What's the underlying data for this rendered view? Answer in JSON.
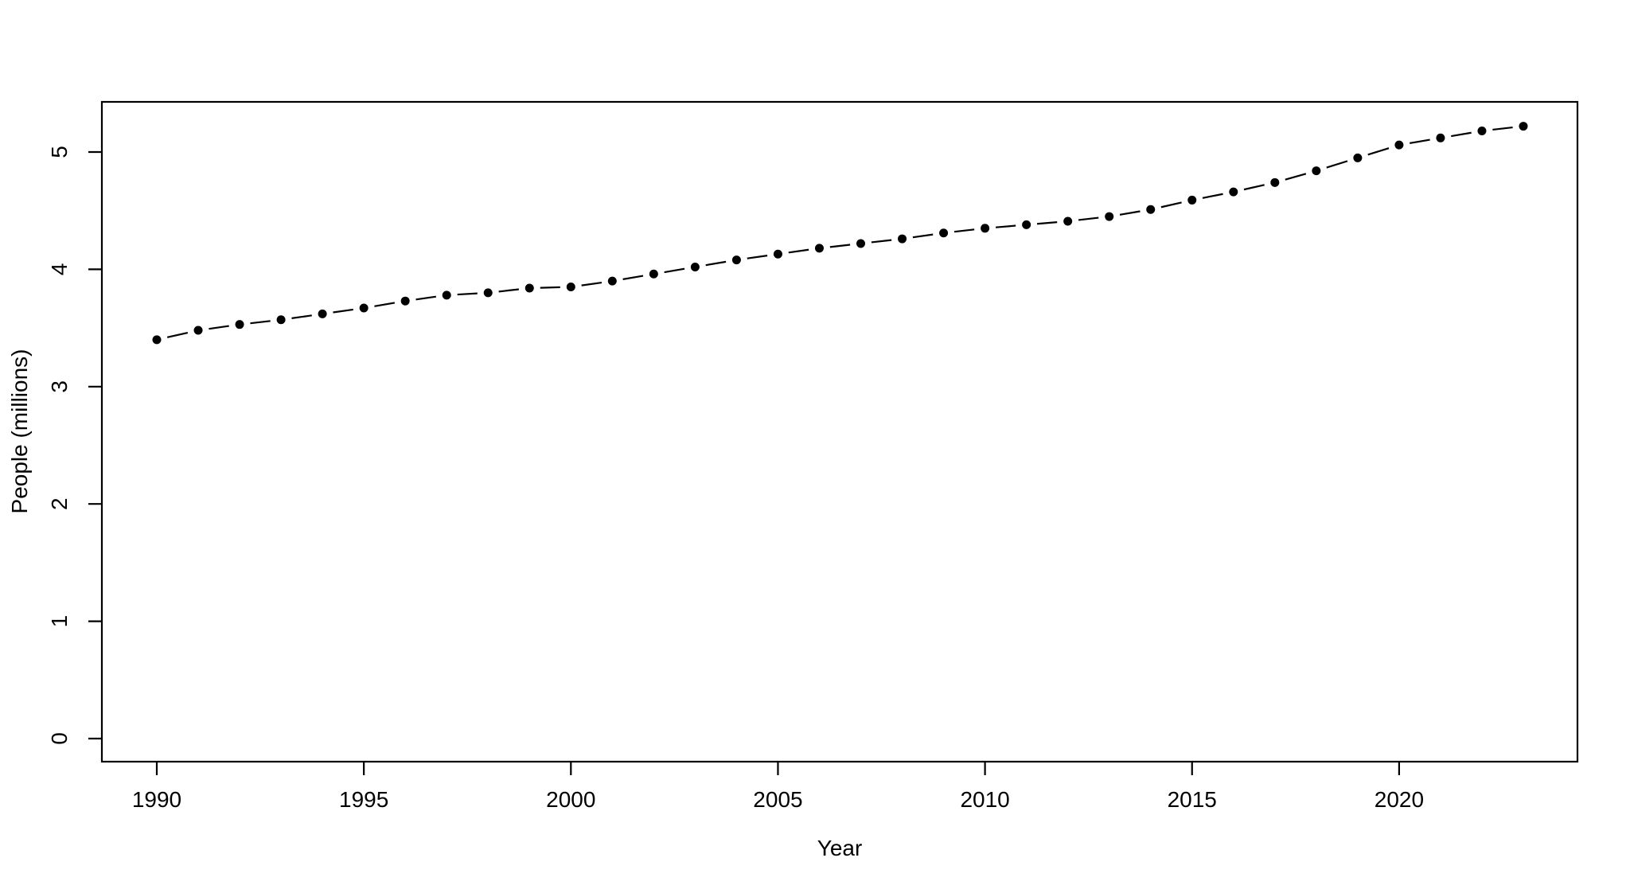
{
  "figure": {
    "background": "#ffffff",
    "foreground": "#000000"
  },
  "chart_data": {
    "type": "line",
    "subtype": "points-with-dashed-connectors",
    "title": "",
    "xlabel": "Year",
    "ylabel": "People (millions)",
    "x": [
      1990,
      1991,
      1992,
      1993,
      1994,
      1995,
      1996,
      1997,
      1998,
      1999,
      2000,
      2001,
      2002,
      2003,
      2004,
      2005,
      2006,
      2007,
      2008,
      2009,
      2010,
      2011,
      2012,
      2013,
      2014,
      2015,
      2016,
      2017,
      2018,
      2019,
      2020,
      2021,
      2022,
      2023
    ],
    "series": [
      {
        "name": "People (millions)",
        "values": [
          3.4,
          3.48,
          3.53,
          3.57,
          3.62,
          3.67,
          3.73,
          3.78,
          3.8,
          3.84,
          3.85,
          3.9,
          3.96,
          4.02,
          4.08,
          4.13,
          4.18,
          4.22,
          4.26,
          4.31,
          4.35,
          4.38,
          4.41,
          4.45,
          4.51,
          4.59,
          4.66,
          4.74,
          4.84,
          4.95,
          5.06,
          5.12,
          5.18,
          5.22
        ]
      }
    ],
    "xticks": [
      1990,
      1995,
      2000,
      2005,
      2010,
      2015,
      2020
    ],
    "yticks": [
      0,
      1,
      2,
      3,
      4,
      5
    ],
    "xlim": [
      1988.7,
      2024.3
    ],
    "ylim": [
      -0.2,
      5.43
    ],
    "grid": false,
    "legend_position": "none",
    "marker": "filled-circle",
    "line_style": "dashed",
    "color": "#000000"
  }
}
